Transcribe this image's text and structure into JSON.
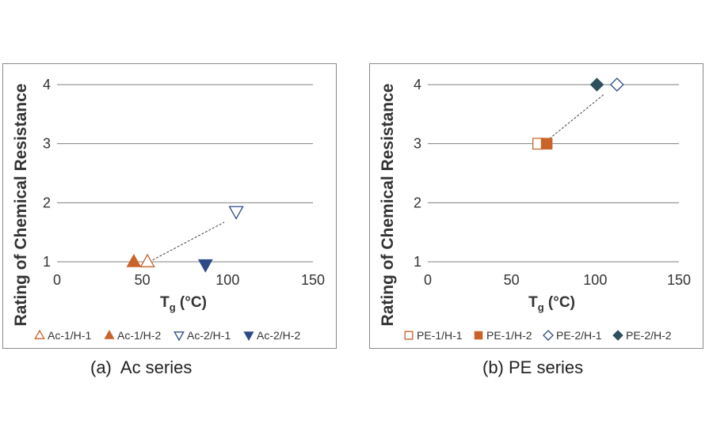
{
  "chart_data": [
    {
      "type": "scatter",
      "panel": "a",
      "caption": "(a)  Ac series",
      "ylabel": "Rating of Chemical Resistance",
      "xlabel_main": "T",
      "xlabel_sub": "g",
      "xlabel_unit": " (°C)",
      "xlim": [
        0,
        150
      ],
      "ylim": [
        1,
        4
      ],
      "xticks": [
        0,
        50,
        100,
        150
      ],
      "yticks": [
        1,
        2,
        3,
        4
      ],
      "grid": "horizontal",
      "series": [
        {
          "name": "Ac-1/H-1",
          "marker": "triangle-up-open",
          "color": "#c8632a",
          "x": [
            53
          ],
          "y": [
            1
          ]
        },
        {
          "name": "Ac-1/H-2",
          "marker": "triangle-up-filled",
          "color": "#c8632a",
          "x": [
            45
          ],
          "y": [
            1
          ]
        },
        {
          "name": "Ac-2/H-1",
          "marker": "triangle-down-open",
          "color": "#2e4a86",
          "x": [
            105
          ],
          "y": [
            1.85
          ]
        },
        {
          "name": "Ac-2/H-2",
          "marker": "triangle-down-filled",
          "color": "#2e4a86",
          "x": [
            87
          ],
          "y": [
            0.95
          ]
        }
      ],
      "trend": {
        "x": [
          54,
          98
        ],
        "y": [
          1,
          1.67
        ]
      }
    },
    {
      "type": "scatter",
      "panel": "b",
      "caption": "(b) PE series",
      "ylabel": "Rating of Chemical Resistance",
      "xlabel_main": "T",
      "xlabel_sub": "g",
      "xlabel_unit": " (°C)",
      "xlim": [
        0,
        150
      ],
      "ylim": [
        1,
        4
      ],
      "xticks": [
        0,
        50,
        100,
        150
      ],
      "yticks": [
        1,
        2,
        3,
        4
      ],
      "grid": "horizontal",
      "series": [
        {
          "name": "PE-1/H-1",
          "marker": "square-open",
          "color": "#c8632a",
          "x": [
            66
          ],
          "y": [
            3
          ]
        },
        {
          "name": "PE-1/H-2",
          "marker": "square-filled",
          "color": "#c8632a",
          "x": [
            71
          ],
          "y": [
            3
          ]
        },
        {
          "name": "PE-2/H-1",
          "marker": "diamond-open",
          "color": "#2e4a86",
          "x": [
            113
          ],
          "y": [
            4
          ]
        },
        {
          "name": "PE-2/H-2",
          "marker": "diamond-filled",
          "color": "#2e4f5c",
          "x": [
            101
          ],
          "y": [
            4
          ]
        }
      ],
      "trend": {
        "x": [
          69,
          105
        ],
        "y": [
          3,
          3.83
        ]
      }
    }
  ]
}
